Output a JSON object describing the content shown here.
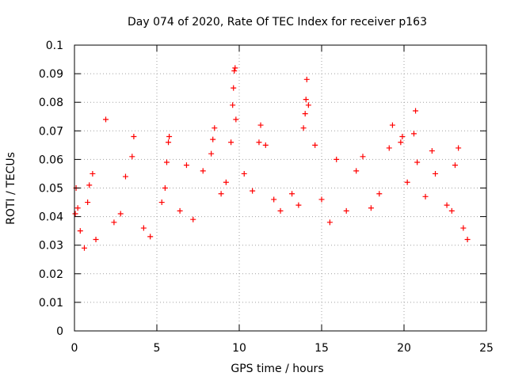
{
  "chart_data": {
    "type": "scatter",
    "title": "Day 074 of 2020, Rate Of TEC Index for receiver p163",
    "xlabel": "GPS time / hours",
    "ylabel": "ROTI / TECUs",
    "xlim": [
      0,
      25
    ],
    "ylim": [
      0,
      0.1
    ],
    "xticks": [
      0,
      5,
      10,
      15,
      20,
      25
    ],
    "xtick_labels": [
      "0",
      "5",
      "10",
      "15",
      "20",
      "25"
    ],
    "yticks": [
      0,
      0.01,
      0.02,
      0.03,
      0.04,
      0.05,
      0.06,
      0.07,
      0.08,
      0.09,
      0.1
    ],
    "ytick_labels": [
      "0",
      "0.01",
      "0.02",
      "0.03",
      "0.04",
      "0.05",
      "0.06",
      "0.07",
      "0.08",
      "0.09",
      "0.1"
    ],
    "grid": true,
    "marker": "+",
    "marker_color": "#ff0000",
    "series": [
      {
        "points": [
          [
            0.05,
            0.041
          ],
          [
            0.1,
            0.05
          ],
          [
            0.2,
            0.043
          ],
          [
            0.35,
            0.035
          ],
          [
            0.6,
            0.029
          ],
          [
            0.8,
            0.045
          ],
          [
            0.9,
            0.051
          ],
          [
            1.1,
            0.055
          ],
          [
            1.3,
            0.032
          ],
          [
            1.9,
            0.074
          ],
          [
            2.4,
            0.038
          ],
          [
            2.8,
            0.041
          ],
          [
            3.1,
            0.054
          ],
          [
            3.5,
            0.061
          ],
          [
            3.6,
            0.068
          ],
          [
            4.2,
            0.036
          ],
          [
            4.6,
            0.033
          ],
          [
            5.3,
            0.045
          ],
          [
            5.5,
            0.05
          ],
          [
            5.6,
            0.059
          ],
          [
            5.7,
            0.066
          ],
          [
            5.75,
            0.068
          ],
          [
            6.4,
            0.042
          ],
          [
            6.8,
            0.058
          ],
          [
            7.2,
            0.039
          ],
          [
            7.8,
            0.056
          ],
          [
            8.3,
            0.062
          ],
          [
            8.4,
            0.067
          ],
          [
            8.5,
            0.071
          ],
          [
            8.9,
            0.048
          ],
          [
            9.2,
            0.052
          ],
          [
            9.5,
            0.066
          ],
          [
            9.6,
            0.079
          ],
          [
            9.65,
            0.085
          ],
          [
            9.7,
            0.091
          ],
          [
            9.75,
            0.092
          ],
          [
            9.8,
            0.074
          ],
          [
            10.3,
            0.055
          ],
          [
            10.8,
            0.049
          ],
          [
            11.2,
            0.066
          ],
          [
            11.3,
            0.072
          ],
          [
            11.6,
            0.065
          ],
          [
            12.1,
            0.046
          ],
          [
            12.5,
            0.042
          ],
          [
            13.2,
            0.048
          ],
          [
            13.6,
            0.044
          ],
          [
            13.9,
            0.071
          ],
          [
            14.0,
            0.076
          ],
          [
            14.05,
            0.081
          ],
          [
            14.1,
            0.088
          ],
          [
            14.2,
            0.079
          ],
          [
            14.6,
            0.065
          ],
          [
            15.0,
            0.046
          ],
          [
            15.5,
            0.038
          ],
          [
            15.9,
            0.06
          ],
          [
            16.5,
            0.042
          ],
          [
            17.1,
            0.056
          ],
          [
            17.5,
            0.061
          ],
          [
            18.0,
            0.043
          ],
          [
            18.5,
            0.048
          ],
          [
            19.1,
            0.064
          ],
          [
            19.3,
            0.072
          ],
          [
            19.8,
            0.066
          ],
          [
            19.9,
            0.068
          ],
          [
            20.2,
            0.052
          ],
          [
            20.6,
            0.069
          ],
          [
            20.7,
            0.077
          ],
          [
            20.8,
            0.059
          ],
          [
            21.3,
            0.047
          ],
          [
            21.7,
            0.063
          ],
          [
            21.9,
            0.055
          ],
          [
            22.6,
            0.044
          ],
          [
            22.9,
            0.042
          ],
          [
            23.1,
            0.058
          ],
          [
            23.3,
            0.064
          ],
          [
            23.6,
            0.036
          ],
          [
            23.85,
            0.032
          ]
        ]
      }
    ]
  }
}
